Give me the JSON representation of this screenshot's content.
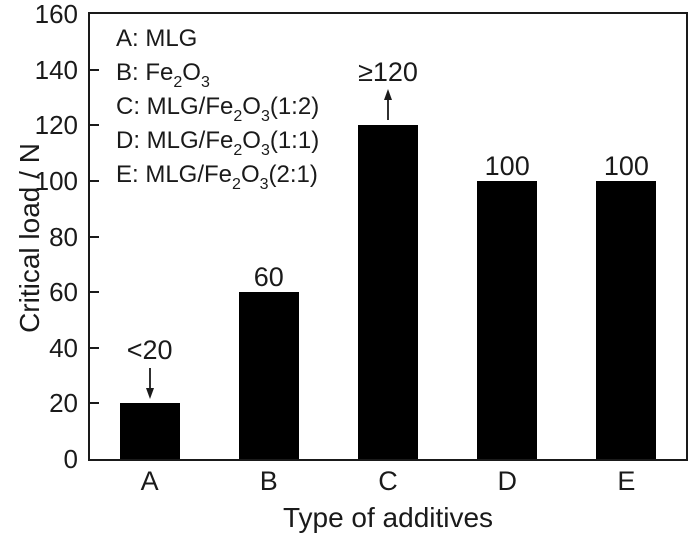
{
  "figure": {
    "background": "#ffffff",
    "bar_color": "#000000",
    "axis_color": "#1a1a1a",
    "text_color": "#1a1a1a"
  },
  "chart_data": {
    "type": "bar",
    "title": "",
    "xlabel": "Type of additives",
    "ylabel": "Critical load / N",
    "categories": [
      "A",
      "B",
      "C",
      "D",
      "E"
    ],
    "values": [
      20,
      60,
      120,
      100,
      100
    ],
    "bar_labels": [
      "<20",
      "60",
      "≥120",
      "100",
      "100"
    ],
    "arrows": [
      "down",
      null,
      "up",
      null,
      null
    ],
    "ylim": [
      0,
      160
    ],
    "yticks": [
      0,
      20,
      40,
      60,
      80,
      100,
      120,
      140,
      160
    ],
    "grid": false,
    "legend_position": "top-left",
    "legend": {
      "items": [
        {
          "key": "A",
          "segments": [
            {
              "t": "A: MLG"
            }
          ]
        },
        {
          "key": "B",
          "segments": [
            {
              "t": "B: Fe"
            },
            {
              "t": "2",
              "sub": true
            },
            {
              "t": "O"
            },
            {
              "t": "3",
              "sub": true
            }
          ]
        },
        {
          "key": "C",
          "segments": [
            {
              "t": "C: MLG/Fe"
            },
            {
              "t": "2",
              "sub": true
            },
            {
              "t": "O"
            },
            {
              "t": "3",
              "sub": true
            },
            {
              "t": "(1:2)"
            }
          ]
        },
        {
          "key": "D",
          "segments": [
            {
              "t": "D: MLG/Fe"
            },
            {
              "t": "2",
              "sub": true
            },
            {
              "t": "O"
            },
            {
              "t": "3",
              "sub": true
            },
            {
              "t": "(1:1)"
            }
          ]
        },
        {
          "key": "E",
          "segments": [
            {
              "t": "E: MLG/Fe"
            },
            {
              "t": "2",
              "sub": true
            },
            {
              "t": "O"
            },
            {
              "t": "3",
              "sub": true
            },
            {
              "t": "(2:1)"
            }
          ]
        }
      ]
    }
  }
}
